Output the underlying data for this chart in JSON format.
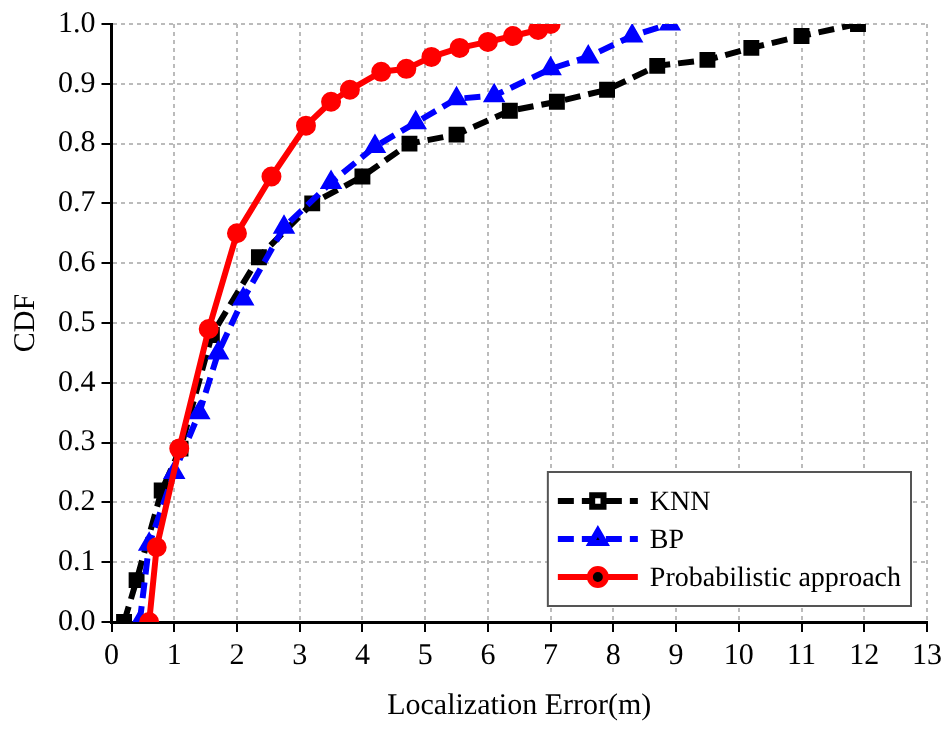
{
  "chart_data": {
    "type": "line",
    "xlabel": "Localization Error(m)",
    "ylabel": "CDF",
    "xlim": [
      0,
      13
    ],
    "xticks": [
      0,
      1,
      2,
      3,
      4,
      5,
      6,
      7,
      8,
      9,
      10,
      11,
      12,
      13
    ],
    "ylim": [
      0,
      1
    ],
    "yticks": [
      {
        "value": 0,
        "label": "0.0"
      },
      0.1,
      0.2,
      0.3,
      0.4,
      0.5,
      0.6,
      0.7,
      0.8,
      0.9,
      {
        "value": 1,
        "label": "1.0"
      }
    ],
    "grid": true,
    "legend": "bottom right",
    "series": [
      {
        "name": "KNN",
        "color": "#000000",
        "marker": "square",
        "line_style": "dashed",
        "x": [
          0.2,
          0.4,
          0.8,
          1.1,
          1.6,
          2.35,
          3.2,
          4.0,
          4.75,
          5.5,
          6.35,
          7.1,
          7.9,
          8.7,
          9.5,
          10.2,
          11.0,
          11.9
        ],
        "values": [
          0,
          0.07,
          0.22,
          0.29,
          0.48,
          0.61,
          0.7,
          0.745,
          0.8,
          0.815,
          0.855,
          0.87,
          0.89,
          0.93,
          0.94,
          0.96,
          0.98,
          1.0
        ]
      },
      {
        "name": "BP",
        "color": "#0000ff",
        "marker": "triangle",
        "line_style": "dashed",
        "x": [
          0.45,
          0.6,
          1.0,
          1.4,
          1.7,
          2.1,
          2.75,
          3.5,
          4.2,
          4.85,
          5.5,
          6.1,
          7.0,
          7.6,
          8.3,
          8.9
        ],
        "values": [
          0,
          0.13,
          0.25,
          0.35,
          0.45,
          0.54,
          0.66,
          0.735,
          0.795,
          0.835,
          0.875,
          0.88,
          0.925,
          0.945,
          0.98,
          1.0
        ]
      },
      {
        "name": "Probabilistic approach",
        "color": "#ff0000",
        "marker": "circle",
        "line_style": "solid",
        "x": [
          0.6,
          0.72,
          1.08,
          1.55,
          2.0,
          2.55,
          3.1,
          3.5,
          3.8,
          4.3,
          4.7,
          5.1,
          5.55,
          6.0,
          6.4,
          6.8,
          7.0
        ],
        "values": [
          0,
          0.125,
          0.29,
          0.49,
          0.65,
          0.745,
          0.83,
          0.87,
          0.89,
          0.92,
          0.925,
          0.945,
          0.96,
          0.97,
          0.98,
          0.99,
          1.0
        ]
      }
    ]
  }
}
